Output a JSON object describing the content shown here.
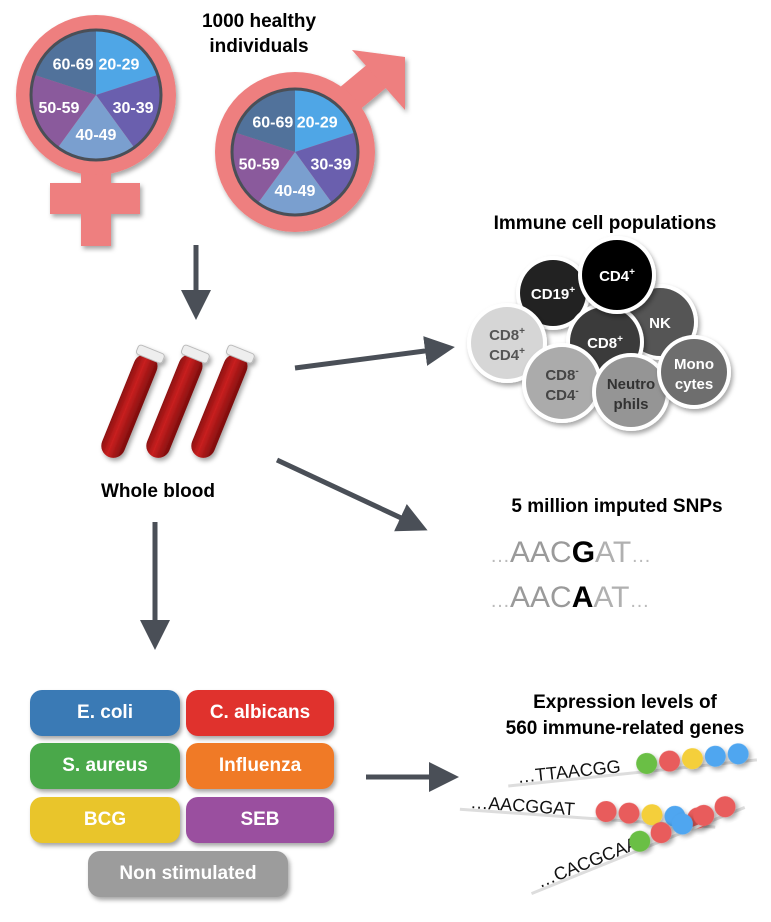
{
  "title": [
    "1000 healthy",
    "individuals"
  ],
  "age_groups": [
    "20-29",
    "30-39",
    "40-49",
    "50-59",
    "60-69"
  ],
  "age_colors": [
    "#4fa6e6",
    "#6a5fae",
    "#7a9fcf",
    "#8a5a9c",
    "#51729b"
  ],
  "symbol_color": "#ee7f7f",
  "blood_label": "Whole blood",
  "immune": {
    "title": "Immune cell populations",
    "cells": [
      {
        "label": "CD19",
        "sup": "+",
        "fill": "#222222",
        "text": "#ffffff"
      },
      {
        "label": "NK",
        "sup": "",
        "fill": "#555555",
        "text": "#ffffff"
      },
      {
        "label": "CD8",
        "sup": "+",
        "fill": "#3a3a3a",
        "text": "#ffffff"
      },
      {
        "label": "CD4",
        "sup": "+",
        "fill": "#000000",
        "text": "#ffffff"
      },
      {
        "label": "CD8+ CD4+",
        "line1": "CD8",
        "sup1": "+",
        "line2": "CD4",
        "sup2": "+",
        "fill": "#d6d6d6",
        "text": "#555555"
      },
      {
        "label": "CD8- CD4-",
        "line1": "CD8",
        "sup1": "-",
        "line2": "CD4",
        "sup2": "-",
        "fill": "#ababab",
        "text": "#444444"
      },
      {
        "label": "Neutrophils",
        "line1": "Neutro",
        "line2": "phils",
        "fill": "#959595",
        "text": "#333333"
      },
      {
        "label": "Monocytes",
        "line1": "Mono",
        "line2": "cytes",
        "fill": "#6e6e6e",
        "text": "#ffffff"
      }
    ]
  },
  "snps": {
    "title": "5 million imputed SNPs",
    "seq1": {
      "pre": "AAC",
      "allele": "G",
      "post": "AT"
    },
    "seq2": {
      "pre": "AAC",
      "allele": "A",
      "post": "AT"
    },
    "dots": "…"
  },
  "stimuli": [
    {
      "label": "E. coli",
      "color": "#3a7ab5"
    },
    {
      "label": "C. albicans",
      "color": "#e0322d"
    },
    {
      "label": "S. aureus",
      "color": "#4aa84a"
    },
    {
      "label": "Influenza",
      "color": "#f07a26"
    },
    {
      "label": "BCG",
      "color": "#e9c52b"
    },
    {
      "label": "SEB",
      "color": "#9a4f9f"
    },
    {
      "label": "Non stimulated",
      "color": "#9c9c9c"
    }
  ],
  "expression": {
    "title": [
      "Expression levels of",
      "560 immune-related genes"
    ],
    "genes": [
      {
        "seq": "…TTAACGG",
        "beads": [
          "#6bbf45",
          "#e85c5c",
          "#f4cf3a",
          "#4fa6f0",
          "#4fa6f0"
        ]
      },
      {
        "seq": "…AACGGAT",
        "beads": [
          "#e85c5c",
          "#e85c5c",
          "#f4cf3a",
          "#4fa6f0",
          "#e85c5c"
        ]
      },
      {
        "seq": "…CACGCAA",
        "beads": [
          "#6bbf45",
          "#e85c5c",
          "#4fa6f0",
          "#e85c5c",
          "#e85c5c"
        ]
      }
    ]
  }
}
